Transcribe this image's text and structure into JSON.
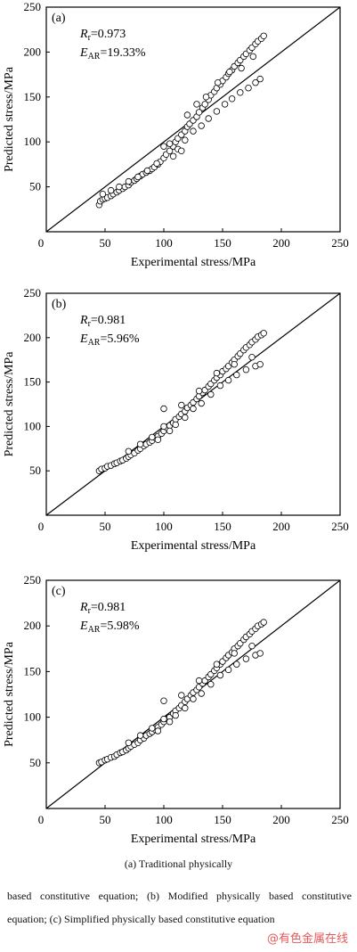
{
  "chart_data": [
    {
      "type": "scatter",
      "panel_label": "(a)",
      "stat_r_symbol": "R",
      "stat_r_sub": "r",
      "stat_r_value": "=0.973",
      "stat_e_symbol": "E",
      "stat_e_sub": "AR",
      "stat_e_value": "=19.33%",
      "xlabel": "Experimental stress/MPa",
      "ylabel": "Predicted stress/MPa",
      "xlim": [
        0,
        250
      ],
      "ylim": [
        0,
        250
      ],
      "xticks": [
        "0",
        "50",
        "100",
        "150",
        "200",
        "250"
      ],
      "yticks": [
        "50",
        "100",
        "150",
        "200",
        "250"
      ],
      "reference_line": [
        [
          0,
          0
        ],
        [
          250,
          250
        ]
      ],
      "points": [
        [
          45,
          30
        ],
        [
          46,
          34
        ],
        [
          48,
          36
        ],
        [
          50,
          37
        ],
        [
          52,
          38
        ],
        [
          55,
          40
        ],
        [
          57,
          42
        ],
        [
          60,
          44
        ],
        [
          62,
          46
        ],
        [
          65,
          48
        ],
        [
          67,
          50
        ],
        [
          70,
          52
        ],
        [
          72,
          55
        ],
        [
          75,
          57
        ],
        [
          77,
          59
        ],
        [
          80,
          62
        ],
        [
          82,
          64
        ],
        [
          85,
          66
        ],
        [
          88,
          68
        ],
        [
          90,
          70
        ],
        [
          92,
          72
        ],
        [
          95,
          75
        ],
        [
          97,
          78
        ],
        [
          100,
          82
        ],
        [
          102,
          86
        ],
        [
          105,
          90
        ],
        [
          108,
          95
        ],
        [
          110,
          100
        ],
        [
          112,
          104
        ],
        [
          115,
          108
        ],
        [
          118,
          112
        ],
        [
          120,
          117
        ],
        [
          122,
          120
        ],
        [
          125,
          124
        ],
        [
          128,
          128
        ],
        [
          130,
          133
        ],
        [
          133,
          138
        ],
        [
          135,
          142
        ],
        [
          138,
          147
        ],
        [
          140,
          152
        ],
        [
          143,
          156
        ],
        [
          145,
          160
        ],
        [
          148,
          164
        ],
        [
          150,
          168
        ],
        [
          153,
          172
        ],
        [
          155,
          176
        ],
        [
          158,
          180
        ],
        [
          160,
          184
        ],
        [
          163,
          188
        ],
        [
          165,
          191
        ],
        [
          168,
          195
        ],
        [
          170,
          198
        ],
        [
          173,
          202
        ],
        [
          175,
          205
        ],
        [
          178,
          209
        ],
        [
          180,
          212
        ],
        [
          183,
          215
        ],
        [
          185,
          218
        ],
        [
          48,
          42
        ],
        [
          55,
          46
        ],
        [
          62,
          50
        ],
        [
          70,
          56
        ],
        [
          78,
          61
        ],
        [
          86,
          68
        ],
        [
          94,
          76
        ],
        [
          100,
          95
        ],
        [
          105,
          98
        ],
        [
          112,
          92
        ],
        [
          118,
          102
        ],
        [
          125,
          112
        ],
        [
          132,
          118
        ],
        [
          138,
          126
        ],
        [
          145,
          134
        ],
        [
          152,
          142
        ],
        [
          158,
          148
        ],
        [
          165,
          155
        ],
        [
          172,
          160
        ],
        [
          178,
          166
        ],
        [
          182,
          170
        ],
        [
          120,
          130
        ],
        [
          128,
          142
        ],
        [
          136,
          150
        ],
        [
          146,
          166
        ],
        [
          156,
          178
        ],
        [
          166,
          182
        ],
        [
          176,
          195
        ],
        [
          115,
          90
        ],
        [
          108,
          84
        ]
      ]
    },
    {
      "type": "scatter",
      "panel_label": "(b)",
      "stat_r_symbol": "R",
      "stat_r_sub": "r",
      "stat_r_value": "=0.981",
      "stat_e_symbol": "E",
      "stat_e_sub": "AR",
      "stat_e_value": "=5.96%",
      "xlabel": "Experimental stress/MPa",
      "ylabel": "Predicted stress/MPa",
      "xlim": [
        0,
        250
      ],
      "ylim": [
        0,
        250
      ],
      "xticks": [
        "0",
        "50",
        "100",
        "150",
        "200",
        "250"
      ],
      "yticks": [
        "50",
        "100",
        "150",
        "200",
        "250"
      ],
      "reference_line": [
        [
          0,
          0
        ],
        [
          250,
          250
        ]
      ],
      "points": [
        [
          45,
          50
        ],
        [
          47,
          52
        ],
        [
          50,
          53
        ],
        [
          52,
          55
        ],
        [
          55,
          56
        ],
        [
          58,
          58
        ],
        [
          60,
          59
        ],
        [
          63,
          61
        ],
        [
          65,
          62
        ],
        [
          68,
          64
        ],
        [
          70,
          66
        ],
        [
          72,
          68
        ],
        [
          75,
          70
        ],
        [
          78,
          73
        ],
        [
          80,
          75
        ],
        [
          83,
          78
        ],
        [
          85,
          80
        ],
        [
          88,
          82
        ],
        [
          90,
          84
        ],
        [
          93,
          87
        ],
        [
          95,
          89
        ],
        [
          98,
          92
        ],
        [
          100,
          95
        ],
        [
          103,
          98
        ],
        [
          105,
          101
        ],
        [
          108,
          104
        ],
        [
          110,
          108
        ],
        [
          113,
          111
        ],
        [
          115,
          114
        ],
        [
          118,
          117
        ],
        [
          120,
          121
        ],
        [
          123,
          124
        ],
        [
          125,
          127
        ],
        [
          128,
          131
        ],
        [
          130,
          134
        ],
        [
          133,
          138
        ],
        [
          135,
          141
        ],
        [
          138,
          145
        ],
        [
          140,
          148
        ],
        [
          143,
          152
        ],
        [
          145,
          155
        ],
        [
          148,
          158
        ],
        [
          150,
          162
        ],
        [
          153,
          165
        ],
        [
          155,
          168
        ],
        [
          158,
          172
        ],
        [
          160,
          175
        ],
        [
          163,
          179
        ],
        [
          165,
          182
        ],
        [
          168,
          186
        ],
        [
          170,
          189
        ],
        [
          173,
          192
        ],
        [
          175,
          195
        ],
        [
          178,
          198
        ],
        [
          180,
          201
        ],
        [
          183,
          203
        ],
        [
          185,
          205
        ],
        [
          70,
          72
        ],
        [
          80,
          80
        ],
        [
          90,
          88
        ],
        [
          100,
          100
        ],
        [
          110,
          102
        ],
        [
          118,
          110
        ],
        [
          125,
          120
        ],
        [
          132,
          126
        ],
        [
          140,
          136
        ],
        [
          148,
          146
        ],
        [
          155,
          152
        ],
        [
          162,
          158
        ],
        [
          170,
          164
        ],
        [
          178,
          168
        ],
        [
          182,
          170
        ],
        [
          100,
          120
        ],
        [
          115,
          124
        ],
        [
          130,
          140
        ],
        [
          145,
          160
        ],
        [
          160,
          170
        ],
        [
          175,
          178
        ],
        [
          95,
          85
        ],
        [
          105,
          95
        ]
      ]
    },
    {
      "type": "scatter",
      "panel_label": "(c)",
      "stat_r_symbol": "R",
      "stat_r_sub": "r",
      "stat_r_value": "=0.981",
      "stat_e_symbol": "E",
      "stat_e_sub": "AR",
      "stat_e_value": "=5.98%",
      "xlabel": "Experimental stress/MPa",
      "ylabel": "Predicted stress/MPa",
      "xlim": [
        0,
        250
      ],
      "ylim": [
        0,
        250
      ],
      "xticks": [
        "0",
        "50",
        "100",
        "150",
        "200",
        "250"
      ],
      "yticks": [
        "50",
        "100",
        "150",
        "200",
        "250"
      ],
      "reference_line": [
        [
          0,
          0
        ],
        [
          250,
          250
        ]
      ],
      "points": [
        [
          45,
          50
        ],
        [
          47,
          51
        ],
        [
          50,
          53
        ],
        [
          52,
          54
        ],
        [
          55,
          56
        ],
        [
          58,
          57
        ],
        [
          60,
          59
        ],
        [
          63,
          61
        ],
        [
          65,
          62
        ],
        [
          68,
          64
        ],
        [
          70,
          66
        ],
        [
          72,
          68
        ],
        [
          75,
          70
        ],
        [
          78,
          72
        ],
        [
          80,
          75
        ],
        [
          83,
          77
        ],
        [
          85,
          80
        ],
        [
          88,
          82
        ],
        [
          90,
          84
        ],
        [
          93,
          86
        ],
        [
          95,
          89
        ],
        [
          98,
          92
        ],
        [
          100,
          95
        ],
        [
          103,
          98
        ],
        [
          105,
          100
        ],
        [
          108,
          104
        ],
        [
          110,
          107
        ],
        [
          113,
          110
        ],
        [
          115,
          113
        ],
        [
          118,
          117
        ],
        [
          120,
          120
        ],
        [
          123,
          124
        ],
        [
          125,
          127
        ],
        [
          128,
          130
        ],
        [
          130,
          133
        ],
        [
          133,
          137
        ],
        [
          135,
          140
        ],
        [
          138,
          144
        ],
        [
          140,
          147
        ],
        [
          143,
          151
        ],
        [
          145,
          154
        ],
        [
          148,
          158
        ],
        [
          150,
          161
        ],
        [
          153,
          165
        ],
        [
          155,
          168
        ],
        [
          158,
          171
        ],
        [
          160,
          175
        ],
        [
          163,
          178
        ],
        [
          165,
          181
        ],
        [
          168,
          185
        ],
        [
          170,
          188
        ],
        [
          173,
          191
        ],
        [
          175,
          194
        ],
        [
          178,
          197
        ],
        [
          180,
          200
        ],
        [
          183,
          202
        ],
        [
          185,
          204
        ],
        [
          70,
          72
        ],
        [
          80,
          80
        ],
        [
          90,
          88
        ],
        [
          100,
          98
        ],
        [
          110,
          102
        ],
        [
          118,
          110
        ],
        [
          125,
          120
        ],
        [
          132,
          126
        ],
        [
          140,
          136
        ],
        [
          148,
          146
        ],
        [
          155,
          152
        ],
        [
          162,
          158
        ],
        [
          170,
          164
        ],
        [
          178,
          168
        ],
        [
          182,
          170
        ],
        [
          100,
          118
        ],
        [
          115,
          124
        ],
        [
          130,
          140
        ],
        [
          145,
          158
        ],
        [
          160,
          170
        ],
        [
          175,
          178
        ],
        [
          95,
          85
        ],
        [
          105,
          95
        ]
      ]
    }
  ],
  "caption": {
    "main": "(a)  Traditional  physically",
    "rest": "based constitutive equation; (b) Modified physically based constitutive equation; (c) Simplified physically based constitutive equation"
  },
  "watermark": "@有色金属在线"
}
